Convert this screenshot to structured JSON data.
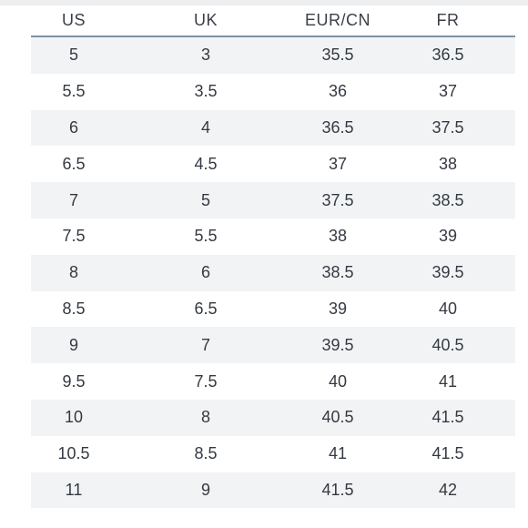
{
  "table": {
    "headers": [
      "US",
      "UK",
      "EUR/CN",
      "FR"
    ],
    "rows": [
      [
        "5",
        "3",
        "35.5",
        "36.5"
      ],
      [
        "5.5",
        "3.5",
        "36",
        "37"
      ],
      [
        "6",
        "4",
        "36.5",
        "37.5"
      ],
      [
        "6.5",
        "4.5",
        "37",
        "38"
      ],
      [
        "7",
        "5",
        "37.5",
        "38.5"
      ],
      [
        "7.5",
        "5.5",
        "38",
        "39"
      ],
      [
        "8",
        "6",
        "38.5",
        "39.5"
      ],
      [
        "8.5",
        "6.5",
        "39",
        "40"
      ],
      [
        "9",
        "7",
        "39.5",
        "40.5"
      ],
      [
        "9.5",
        "7.5",
        "40",
        "41"
      ],
      [
        "10",
        "8",
        "40.5",
        "41.5"
      ],
      [
        "10.5",
        "8.5",
        "41",
        "41.5"
      ],
      [
        "11",
        "9",
        "41.5",
        "42"
      ]
    ]
  }
}
